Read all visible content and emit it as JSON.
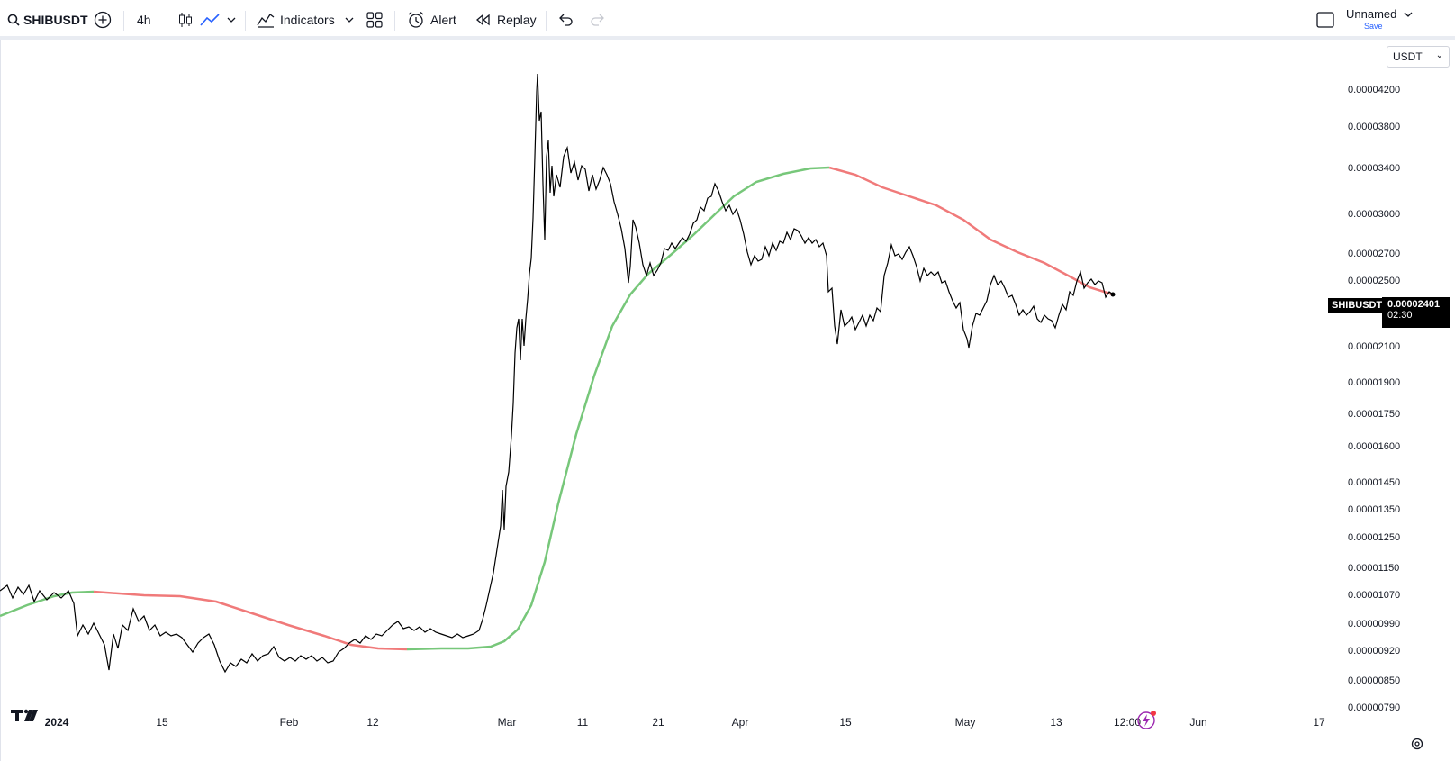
{
  "toolbar": {
    "symbol": "SHIBUSDT",
    "interval": "4h",
    "indicators_label": "Indicators",
    "alert_label": "Alert",
    "replay_label": "Replay",
    "layout_name": "Unnamed",
    "save_label": "Save"
  },
  "chart": {
    "currency": "USDT",
    "symbol_tag": "SHIBUSDT",
    "last_price": "0.00002401",
    "countdown": "02:30",
    "price_axis_labels": [
      "0.00004200",
      "0.00003800",
      "0.00003400",
      "0.00003000",
      "0.00002700",
      "0.00002500",
      "0.00002100",
      "0.00001900",
      "0.00001750",
      "0.00001600",
      "0.00001450",
      "0.00001350",
      "0.00001250",
      "0.00001150",
      "0.00001070",
      "0.00000990",
      "0.00000920",
      "0.00000850",
      "0.00000790"
    ],
    "time_axis_labels": [
      "2024",
      "15",
      "Feb",
      "12",
      "Mar",
      "11",
      "21",
      "Apr",
      "15",
      "May",
      "13",
      "12:00",
      "Jun",
      "17"
    ],
    "colors": {
      "price_line": "#000000",
      "ma_up": "#77c77a",
      "ma_down": "#f07a7a",
      "last_price_bg": "#000000"
    }
  },
  "icons": [
    "search-icon",
    "add-compare-icon",
    "candles-icon",
    "line-style-icon",
    "chevron-down-icon",
    "indicators-icon",
    "layouts-icon",
    "alert-icon",
    "replay-icon",
    "undo-icon",
    "redo-icon",
    "fullscreen-icon",
    "tradingview-logo",
    "bolt-icon",
    "settings-icon"
  ]
}
